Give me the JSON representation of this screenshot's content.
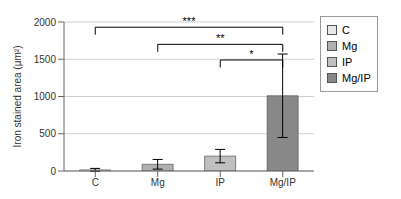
{
  "chart_data": {
    "type": "bar",
    "categories": [
      "C",
      "Mg",
      "IP",
      "Mg/IP"
    ],
    "values": [
      15,
      90,
      200,
      1010
    ],
    "errors": [
      20,
      65,
      90,
      560
    ],
    "colors": [
      "#e8e8e8",
      "#b0b0b0",
      "#c0c0c0",
      "#888888"
    ],
    "ylabel": "Iron stained area (μm²)",
    "ylim": [
      0,
      2000
    ],
    "yticks": [
      0,
      500,
      1000,
      1500,
      2000
    ],
    "grid": true,
    "legend": "right",
    "annotations": [
      {
        "x1": "C",
        "x2": "Mg/IP",
        "y": 1930,
        "drop": 100,
        "label": "***"
      },
      {
        "x1": "Mg",
        "x2": "Mg/IP",
        "y": 1700,
        "drop": 100,
        "label": "**"
      },
      {
        "x1": "IP",
        "x2": "Mg/IP",
        "y": 1490,
        "drop": 100,
        "label": "*"
      }
    ]
  }
}
